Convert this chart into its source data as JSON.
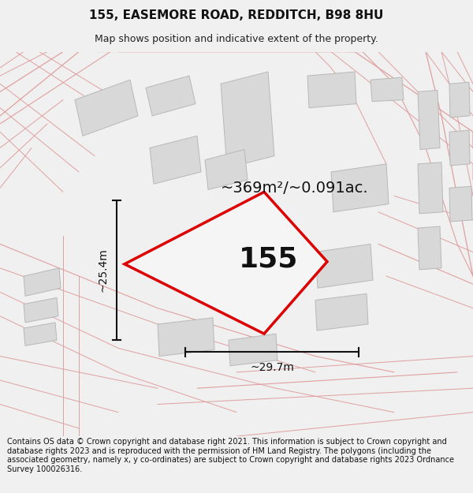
{
  "title": "155, EASEMORE ROAD, REDDITCH, B98 8HU",
  "subtitle": "Map shows position and indicative extent of the property.",
  "footer": "Contains OS data © Crown copyright and database right 2021. This information is subject to Crown copyright and database rights 2023 and is reproduced with the permission of HM Land Registry. The polygons (including the associated geometry, namely x, y co-ordinates) are subject to Crown copyright and database rights 2023 Ordnance Survey 100026316.",
  "area_text": "~369m²/~0.091ac.",
  "property_label": "155",
  "dim_width": "~29.7m",
  "dim_height": "~25.4m",
  "bg_color": "#f0f0f0",
  "map_bg": "#ffffff",
  "road_color": "#f5c8c8",
  "road_line_color": "#e0a0a0",
  "property_fill": "#f0f0f0",
  "property_edge": "#dd0000",
  "building_fill": "#d8d8d8",
  "building_edge": "#b8b8b8",
  "dim_color": "#111111",
  "title_fontsize": 11,
  "subtitle_fontsize": 9,
  "footer_fontsize": 7.0
}
